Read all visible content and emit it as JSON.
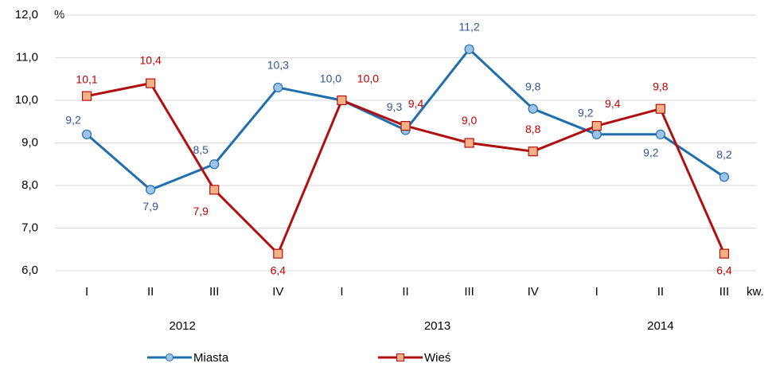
{
  "chart_data": {
    "type": "line",
    "y_unit_label": "%",
    "x_unit_label": "kw.",
    "category_groups": [
      {
        "label": "2012",
        "categories": [
          "I",
          "II",
          "III",
          "IV"
        ]
      },
      {
        "label": "2013",
        "categories": [
          "I",
          "II",
          "III",
          "IV"
        ]
      },
      {
        "label": "2014",
        "categories": [
          "I",
          "II",
          "III"
        ]
      }
    ],
    "series": [
      {
        "name": "Miasta",
        "color": "#1f6fad",
        "marker": "circle",
        "marker_fill": "#9dc3e6",
        "label_color": "#2f5597",
        "values": [
          9.2,
          7.9,
          8.5,
          10.3,
          10.0,
          9.3,
          11.2,
          9.8,
          9.2,
          9.2,
          8.2
        ],
        "value_labels": [
          "9,2",
          "7,9",
          "8,5",
          "10,3",
          "10,0",
          "9,3",
          "11,2",
          "9,8",
          "9,2",
          "9,2",
          "8,2"
        ]
      },
      {
        "name": "Wieś",
        "color": "#b01010",
        "marker": "square",
        "marker_fill": "#f4b183",
        "label_color": "#c00000",
        "values": [
          10.1,
          10.4,
          7.9,
          6.4,
          10.0,
          9.4,
          9.0,
          8.8,
          9.4,
          9.8,
          6.4
        ],
        "value_labels": [
          "10,1",
          "10,4",
          "7,9",
          "6,4",
          "10,0",
          "9,4",
          "9,0",
          "8,8",
          "9,4",
          "9,8",
          "6,4"
        ]
      }
    ],
    "ylim": [
      6,
      12
    ],
    "yticks": [
      {
        "value": 6,
        "label": "6,0"
      },
      {
        "value": 7,
        "label": "7,0"
      },
      {
        "value": 8,
        "label": "8,0"
      },
      {
        "value": 9,
        "label": "9,0"
      },
      {
        "value": 10,
        "label": "10,0"
      },
      {
        "value": 11,
        "label": "11,0"
      },
      {
        "value": 12,
        "label": "12,0"
      }
    ],
    "grid": true,
    "legend": "bottom"
  }
}
